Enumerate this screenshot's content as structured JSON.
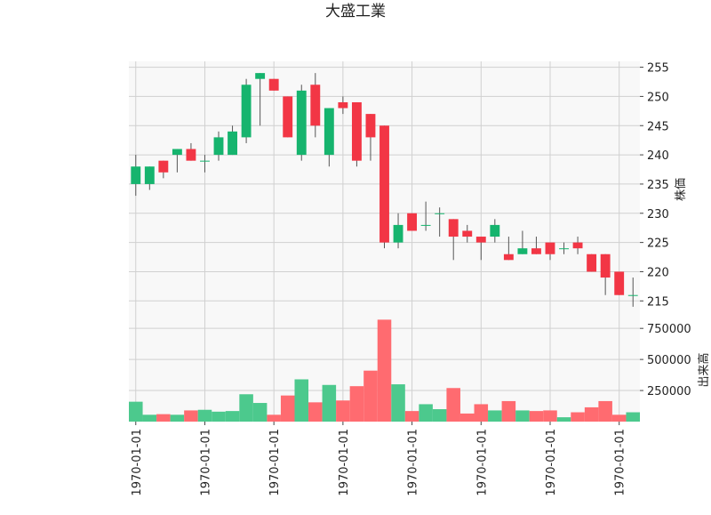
{
  "chart_data": {
    "type": "candlestick",
    "title": "大盛工業",
    "price_panel": {
      "ylabel": "株価",
      "ylim": [
        212,
        256
      ],
      "yticks": [
        215,
        220,
        225,
        230,
        235,
        240,
        245,
        250,
        255
      ]
    },
    "volume_panel": {
      "ylabel": "出来高",
      "ylim": [
        0,
        830000
      ],
      "yticks": [
        250000,
        500000,
        750000
      ],
      "ytick_labels": [
        "250000",
        "500000",
        "750000"
      ]
    },
    "x_tick_labels": [
      "1970-01-01",
      "1970-01-01",
      "1970-01-01",
      "1970-01-01",
      "1970-01-01",
      "1970-01-01",
      "1970-01-01",
      "1970-01-01"
    ],
    "x_tick_positions": [
      0,
      5,
      10,
      15,
      20,
      25,
      30,
      35
    ],
    "grid": true,
    "colors": {
      "up": "#16b46e",
      "down": "#f23645",
      "volume_up": "#4cc98d",
      "volume_down": "#ff6b70",
      "wick": "#555555",
      "panel_bg": "#f8f8f8",
      "grid": "#d0d0d0"
    },
    "candles": [
      {
        "open": 235,
        "high": 240,
        "low": 233,
        "close": 238,
        "volume": 160000
      },
      {
        "open": 235,
        "high": 238,
        "low": 234,
        "close": 238,
        "volume": 55000
      },
      {
        "open": 239,
        "high": 239,
        "low": 236,
        "close": 237,
        "volume": 60000
      },
      {
        "open": 240,
        "high": 241,
        "low": 237,
        "close": 241,
        "volume": 55000
      },
      {
        "open": 241,
        "high": 242,
        "low": 239,
        "close": 239,
        "volume": 90000
      },
      {
        "open": 239,
        "high": 240,
        "low": 237,
        "close": 239,
        "volume": 95000
      },
      {
        "open": 240,
        "high": 244,
        "low": 239,
        "close": 243,
        "volume": 80000
      },
      {
        "open": 240,
        "high": 245,
        "low": 240,
        "close": 244,
        "volume": 85000
      },
      {
        "open": 243,
        "high": 253,
        "low": 242,
        "close": 252,
        "volume": 220000
      },
      {
        "open": 253,
        "high": 254,
        "low": 245,
        "close": 254,
        "volume": 150000
      },
      {
        "open": 253,
        "high": 253,
        "low": 251,
        "close": 251,
        "volume": 55000
      },
      {
        "open": 250,
        "high": 250,
        "low": 243,
        "close": 243,
        "volume": 210000
      },
      {
        "open": 240,
        "high": 252,
        "low": 239,
        "close": 251,
        "volume": 340000
      },
      {
        "open": 252,
        "high": 254,
        "low": 243,
        "close": 245,
        "volume": 155000
      },
      {
        "open": 240,
        "high": 248,
        "low": 238,
        "close": 248,
        "volume": 295000
      },
      {
        "open": 249,
        "high": 250,
        "low": 247,
        "close": 248,
        "volume": 170000
      },
      {
        "open": 249,
        "high": 249,
        "low": 238,
        "close": 239,
        "volume": 285000
      },
      {
        "open": 247,
        "high": 247,
        "low": 239,
        "close": 243,
        "volume": 410000
      },
      {
        "open": 245,
        "high": 245,
        "low": 224,
        "close": 225,
        "volume": 820000
      },
      {
        "open": 225,
        "high": 230,
        "low": 224,
        "close": 228,
        "volume": 300000
      },
      {
        "open": 230,
        "high": 230,
        "low": 227,
        "close": 227,
        "volume": 85000
      },
      {
        "open": 228,
        "high": 232,
        "low": 227,
        "close": 228,
        "volume": 140000
      },
      {
        "open": 230,
        "high": 231,
        "low": 226,
        "close": 230,
        "volume": 100000
      },
      {
        "open": 229,
        "high": 229,
        "low": 222,
        "close": 226,
        "volume": 270000
      },
      {
        "open": 227,
        "high": 228,
        "low": 225,
        "close": 226,
        "volume": 65000
      },
      {
        "open": 226,
        "high": 226,
        "low": 222,
        "close": 225,
        "volume": 140000
      },
      {
        "open": 226,
        "high": 229,
        "low": 225,
        "close": 228,
        "volume": 90000
      },
      {
        "open": 223,
        "high": 226,
        "low": 222,
        "close": 222,
        "volume": 165000
      },
      {
        "open": 223,
        "high": 227,
        "low": 223,
        "close": 224,
        "volume": 90000
      },
      {
        "open": 224,
        "high": 226,
        "low": 223,
        "close": 223,
        "volume": 85000
      },
      {
        "open": 225,
        "high": 225,
        "low": 222,
        "close": 223,
        "volume": 90000
      },
      {
        "open": 224,
        "high": 225,
        "low": 223,
        "close": 224,
        "volume": 35000
      },
      {
        "open": 225,
        "high": 226,
        "low": 223,
        "close": 224,
        "volume": 75000
      },
      {
        "open": 223,
        "high": 223,
        "low": 220,
        "close": 220,
        "volume": 115000
      },
      {
        "open": 223,
        "high": 223,
        "low": 216,
        "close": 219,
        "volume": 165000
      },
      {
        "open": 220,
        "high": 220,
        "low": 216,
        "close": 216,
        "volume": 55000
      },
      {
        "open": 216,
        "high": 219,
        "low": 214,
        "close": 216,
        "volume": 75000
      }
    ]
  }
}
